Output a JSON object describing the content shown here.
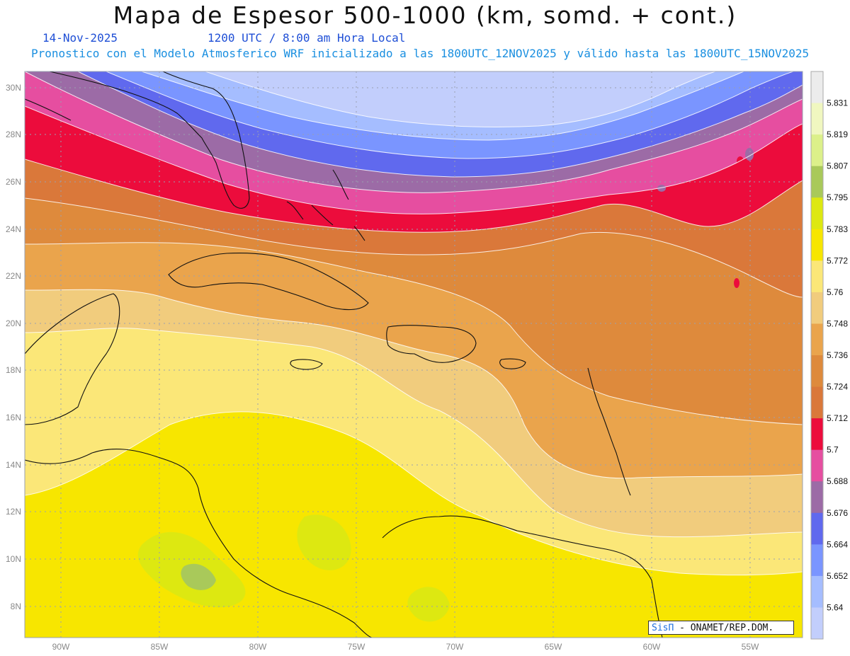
{
  "header": {
    "title": "Mapa de Espesor 500-1000 (km, somd. + cont.)",
    "date": "14-Nov-2025",
    "time": "1200 UTC / 8:00 am Hora Local",
    "forecast": "Pronostico con el Modelo Atmosferico WRF inicializado a las 1800UTC_12NOV2025 y válido hasta las  1800UTC_15NOV2025"
  },
  "credit": {
    "brand": "SisΠ",
    "org": " - ONAMET/REP.DOM."
  },
  "axes": {
    "lat_labels": [
      "30N",
      "28N",
      "26N",
      "24N",
      "22N",
      "20N",
      "18N",
      "16N",
      "14N",
      "12N",
      "10N",
      "8N"
    ],
    "lon_labels": [
      "90W",
      "85W",
      "80W",
      "75W",
      "70W",
      "65W",
      "60W",
      "55W"
    ]
  },
  "colorbar": {
    "labels": [
      "5.831",
      "5.819",
      "5.807",
      "5.795",
      "5.783",
      "5.772",
      "5.76",
      "5.748",
      "5.736",
      "5.724",
      "5.712",
      "5.7",
      "5.688",
      "5.676",
      "5.664",
      "5.652",
      "5.64"
    ],
    "colors": [
      "#ececec",
      "#f0f7c0",
      "#dcf08a",
      "#a9c95a",
      "#dde811",
      "#f7e600",
      "#fbe778",
      "#f1cc7d",
      "#eaa44c",
      "#de8a3c",
      "#da783a",
      "#ec0c3c",
      "#e64ea0",
      "#9c6ba6",
      "#6069ee",
      "#7a95ff",
      "#a5bdff",
      "#c2cefc"
    ]
  }
}
